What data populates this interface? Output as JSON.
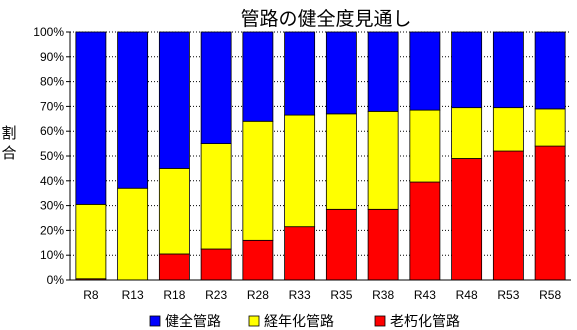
{
  "chart_data": {
    "type": "bar",
    "stacked": true,
    "title": "管路の健全度見通し",
    "ylabel": "割合",
    "xlabel": "",
    "ylim": [
      0,
      100
    ],
    "yticks": [
      "0%",
      "10%",
      "20%",
      "30%",
      "40%",
      "50%",
      "60%",
      "70%",
      "80%",
      "90%",
      "100%"
    ],
    "grid": true,
    "legend": "bottom",
    "categories": [
      "R8",
      "R13",
      "R18",
      "R23",
      "R28",
      "R33",
      "R35",
      "R38",
      "R43",
      "R48",
      "R53",
      "R58"
    ],
    "series": [
      {
        "name": "老朽化管路",
        "color": "#ff0000",
        "values": [
          0.5,
          0,
          10.5,
          12.5,
          16,
          21.5,
          28.5,
          28.5,
          39.5,
          49,
          52,
          54
        ]
      },
      {
        "name": "経年化管路",
        "color": "#ffff00",
        "values": [
          30,
          37,
          34.5,
          42.5,
          48,
          45,
          38.5,
          39.5,
          29,
          20.5,
          17.5,
          15
        ]
      },
      {
        "name": "健全管路",
        "color": "#0000ff",
        "values": [
          69.5,
          63,
          55,
          45,
          36,
          33.5,
          33,
          32,
          31.5,
          30.5,
          30.5,
          31
        ]
      }
    ],
    "legend_order": [
      "健全管路",
      "経年化管路",
      "老朽化管路"
    ]
  }
}
